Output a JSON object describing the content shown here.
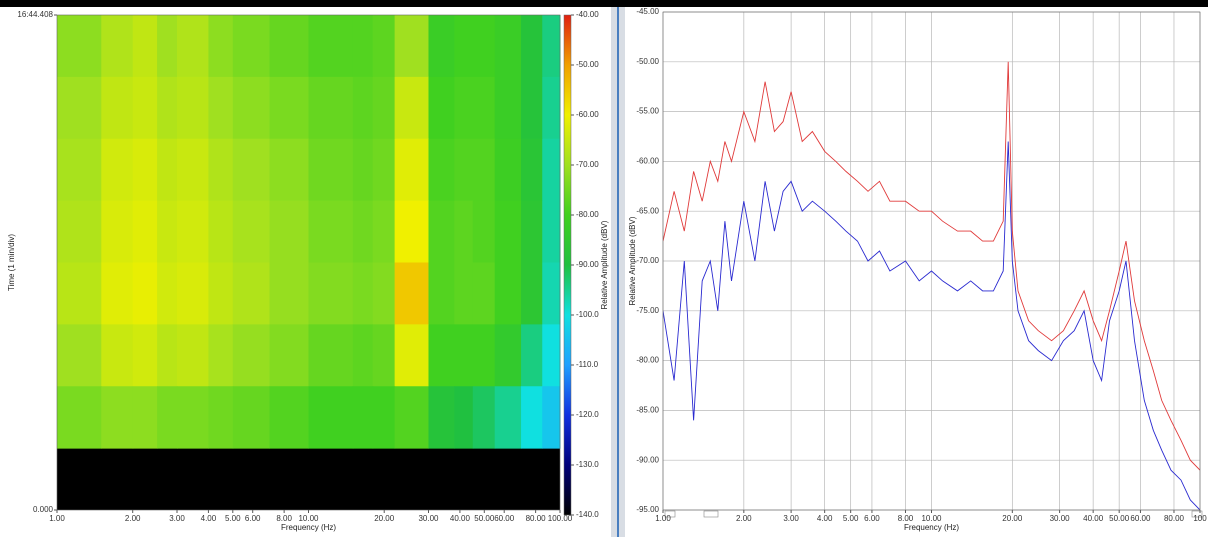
{
  "chart_data": [
    {
      "type": "heatmap",
      "xlabel": "Frequency (Hz)",
      "ylabel": "Time (1 min/div)",
      "zlabel": "Relative Amplitude (dBV)",
      "log_x": true,
      "xlim": [
        1,
        100
      ],
      "xticks": [
        {
          "value": 1,
          "label": "1.00"
        },
        {
          "value": 2,
          "label": "2.00"
        },
        {
          "value": 3,
          "label": "3.00"
        },
        {
          "value": 4,
          "label": "4.00"
        },
        {
          "value": 5,
          "label": "5.00"
        },
        {
          "value": 6,
          "label": "6.00"
        },
        {
          "value": 8,
          "label": "8.00"
        },
        {
          "value": 10,
          "label": "10.00"
        },
        {
          "value": 20,
          "label": "20.00"
        },
        {
          "value": 30,
          "label": "30.00"
        },
        {
          "value": 40,
          "label": "40.00"
        },
        {
          "value": 50,
          "label": "50.00"
        },
        {
          "value": 60,
          "label": "60.00"
        },
        {
          "value": 80,
          "label": "80.00"
        },
        {
          "value": 100,
          "label": "100.00"
        }
      ],
      "ylim": [
        0,
        1004.408
      ],
      "yticks": [
        {
          "value": 1004.408,
          "label": "16:44.408"
        },
        {
          "value": 0,
          "label": "0.000"
        }
      ],
      "zlim": [
        -140,
        -40
      ],
      "zticks": [
        {
          "value": -40,
          "label": "-40.00"
        },
        {
          "value": -50,
          "label": "-50.00"
        },
        {
          "value": -60,
          "label": "-60.00"
        },
        {
          "value": -70,
          "label": "-70.00"
        },
        {
          "value": -80,
          "label": "-80.00"
        },
        {
          "value": -90,
          "label": "-90.00"
        },
        {
          "value": -100,
          "label": "-100.0"
        },
        {
          "value": -110,
          "label": "-110.0"
        },
        {
          "value": -120,
          "label": "-120.0"
        },
        {
          "value": -130,
          "label": "-130.0"
        },
        {
          "value": -140,
          "label": "-140.0"
        }
      ],
      "colors": [
        "#000000",
        "#00007a",
        "#1030e0",
        "#20a0ff",
        "#10e0e0",
        "#20c040",
        "#40d020",
        "#a0e020",
        "#f0f000",
        "#f0a000",
        "#e02010"
      ],
      "xbins": [
        1,
        1.5,
        2,
        2.5,
        3,
        4,
        5,
        7,
        10,
        15,
        18,
        22,
        30,
        38,
        45,
        55,
        70,
        85,
        100
      ],
      "values": [
        [
          -72,
          -68,
          -66,
          -70,
          -68,
          -72,
          -74,
          -76,
          -78,
          -78,
          -77,
          -70,
          -82,
          -80,
          -80,
          -82,
          -88,
          -94
        ],
        [
          -70,
          -66,
          -65,
          -68,
          -67,
          -70,
          -72,
          -74,
          -76,
          -77,
          -76,
          -65,
          -80,
          -79,
          -79,
          -82,
          -88,
          -95
        ],
        [
          -69,
          -64,
          -63,
          -66,
          -65,
          -68,
          -70,
          -72,
          -75,
          -76,
          -75,
          -62,
          -79,
          -78,
          -78,
          -81,
          -87,
          -96
        ],
        [
          -68,
          -63,
          -62,
          -65,
          -64,
          -67,
          -69,
          -71,
          -74,
          -75,
          -74,
          -60,
          -78,
          -77,
          -78,
          -80,
          -86,
          -96
        ],
        [
          -67,
          -62,
          -61,
          -64,
          -63,
          -66,
          -68,
          -71,
          -73,
          -74,
          -73,
          -55,
          -78,
          -77,
          -77,
          -80,
          -86,
          -97
        ],
        [
          -70,
          -65,
          -64,
          -67,
          -66,
          -69,
          -71,
          -73,
          -76,
          -77,
          -76,
          -62,
          -80,
          -80,
          -80,
          -84,
          -94,
          -100
        ],
        [
          -74,
          -72,
          -72,
          -74,
          -74,
          -75,
          -76,
          -78,
          -80,
          -80,
          -80,
          -78,
          -88,
          -90,
          -92,
          -95,
          -100,
          -104
        ],
        [
          null,
          null,
          null,
          null,
          null,
          null,
          null,
          null,
          null,
          null,
          null,
          null,
          null,
          null,
          null,
          null,
          null,
          null
        ]
      ]
    },
    {
      "type": "line",
      "xlabel": "Frequency (Hz)",
      "ylabel": "Relative Amplitude (dBV)",
      "log_x": true,
      "grid": true,
      "xlim": [
        1,
        100
      ],
      "xticks": [
        {
          "value": 1,
          "label": "1.00"
        },
        {
          "value": 2,
          "label": "2.00"
        },
        {
          "value": 3,
          "label": "3.00"
        },
        {
          "value": 4,
          "label": "4.00"
        },
        {
          "value": 5,
          "label": "5.00"
        },
        {
          "value": 6,
          "label": "6.00"
        },
        {
          "value": 8,
          "label": "8.00"
        },
        {
          "value": 10,
          "label": "10.00"
        },
        {
          "value": 20,
          "label": "20.00"
        },
        {
          "value": 30,
          "label": "30.00"
        },
        {
          "value": 40,
          "label": "40.00"
        },
        {
          "value": 50,
          "label": "50.00"
        },
        {
          "value": 60,
          "label": "60.00"
        },
        {
          "value": 80,
          "label": "80.00"
        },
        {
          "value": 100,
          "label": "100"
        }
      ],
      "ylim": [
        -95,
        -45
      ],
      "yticks": [
        {
          "value": -45,
          "label": "-45.00"
        },
        {
          "value": -50,
          "label": "-50.00"
        },
        {
          "value": -55,
          "label": "-55.00"
        },
        {
          "value": -60,
          "label": "-60.00"
        },
        {
          "value": -65,
          "label": "-65.00"
        },
        {
          "value": -70,
          "label": "-70.00"
        },
        {
          "value": -75,
          "label": "-75.00"
        },
        {
          "value": -80,
          "label": "-80.00"
        },
        {
          "value": -85,
          "label": "-85.00"
        },
        {
          "value": -90,
          "label": "-90.00"
        },
        {
          "value": -95,
          "label": "-95.00"
        }
      ],
      "x": [
        1.0,
        1.1,
        1.2,
        1.3,
        1.4,
        1.5,
        1.6,
        1.7,
        1.8,
        2.0,
        2.2,
        2.4,
        2.6,
        2.8,
        3.0,
        3.3,
        3.6,
        4.0,
        4.4,
        4.8,
        5.3,
        5.8,
        6.4,
        7.0,
        8.0,
        9.0,
        10,
        11,
        12.5,
        14,
        15.5,
        17,
        18.5,
        19.3,
        20,
        21,
        23,
        25,
        28,
        31,
        34,
        37,
        40,
        43,
        46,
        50,
        53,
        57,
        62,
        67,
        72,
        78,
        85,
        92,
        100
      ],
      "series": [
        {
          "color": "#e03a3a",
          "values": [
            -68,
            -63,
            -67,
            -61,
            -64,
            -60,
            -62,
            -58,
            -60,
            -55,
            -58,
            -52,
            -57,
            -56,
            -53,
            -58,
            -57,
            -59,
            -60,
            -61,
            -62,
            -63,
            -62,
            -64,
            -64,
            -65,
            -65,
            -66,
            -67,
            -67,
            -68,
            -68,
            -66,
            -50,
            -67,
            -73,
            -76,
            -77,
            -78,
            -77,
            -75,
            -73,
            -76,
            -78,
            -75,
            -71,
            -68,
            -74,
            -78,
            -81,
            -84,
            -86,
            -88,
            -90,
            -91
          ]
        },
        {
          "color": "#2a2ad0",
          "values": [
            -75,
            -82,
            -70,
            -86,
            -72,
            -70,
            -75,
            -66,
            -72,
            -64,
            -70,
            -62,
            -67,
            -63,
            -62,
            -65,
            -64,
            -65,
            -66,
            -67,
            -68,
            -70,
            -69,
            -71,
            -70,
            -72,
            -71,
            -72,
            -73,
            -72,
            -73,
            -73,
            -71,
            -58,
            -70,
            -75,
            -78,
            -79,
            -80,
            -78,
            -77,
            -75,
            -80,
            -82,
            -76,
            -73,
            -70,
            -78,
            -84,
            -87,
            -89,
            -91,
            -92,
            -94,
            -95
          ]
        }
      ]
    }
  ]
}
